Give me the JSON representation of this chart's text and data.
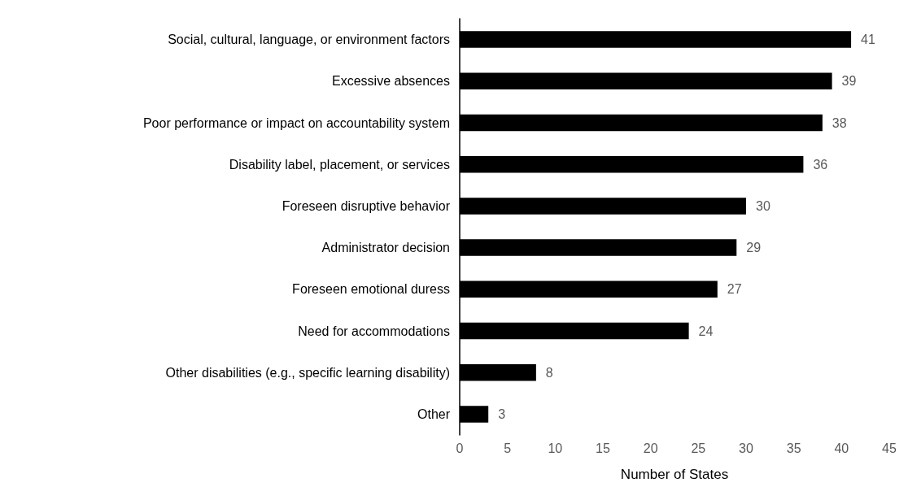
{
  "chart_data": {
    "type": "bar",
    "orientation": "horizontal",
    "xlabel": "Number of States",
    "categories": [
      "Social, cultural, language, or environment factors",
      "Excessive absences",
      "Poor performance or impact on accountability system",
      "Disability label, placement, or services",
      "Foreseen disruptive behavior",
      "Administrator decision",
      "Foreseen emotional duress",
      "Need for accommodations",
      "Other disabilities (e.g., specific learning disability)",
      "Other"
    ],
    "values": [
      41,
      39,
      38,
      36,
      30,
      29,
      27,
      24,
      8,
      3
    ],
    "color": "#000000",
    "xlim": [
      0,
      45
    ],
    "xticks": [
      0,
      5,
      10,
      15,
      20,
      25,
      30,
      35,
      40,
      45
    ],
    "grid": false,
    "data_labels": true
  }
}
